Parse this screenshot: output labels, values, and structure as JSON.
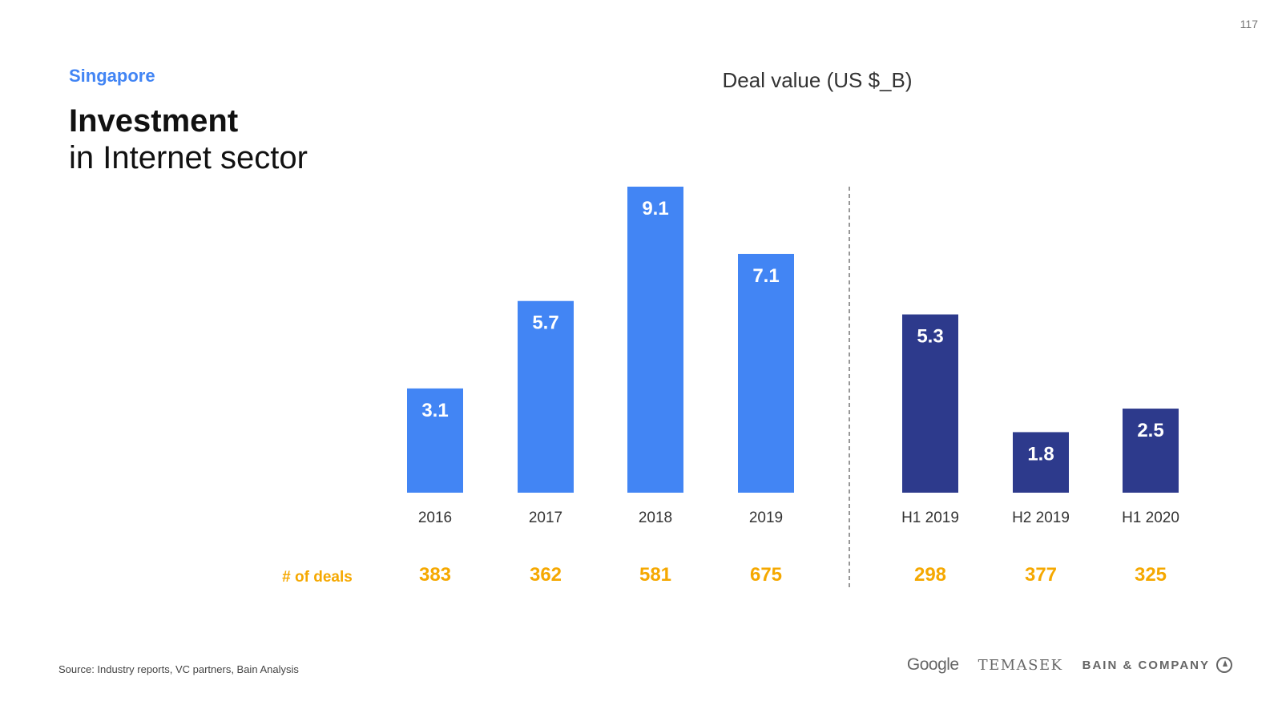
{
  "page_number": "117",
  "header": {
    "kicker": "Singapore",
    "title_bold": "Investment",
    "title_light": "in Internet sector"
  },
  "chart_data": {
    "type": "bar",
    "title": "Deal value (US $_B)",
    "categories": [
      "2016",
      "2017",
      "2018",
      "2019",
      "H1 2019",
      "H2 2019",
      "H1 2020"
    ],
    "values": [
      3.1,
      5.7,
      9.1,
      7.1,
      5.3,
      1.8,
      2.5
    ],
    "value_labels": [
      "3.1",
      "5.7",
      "9.1",
      "7.1",
      "5.3",
      "1.8",
      "2.5"
    ],
    "groups": [
      {
        "name": "annual",
        "indices": [
          0,
          1,
          2,
          3
        ],
        "color": "#4285f4"
      },
      {
        "name": "half-year",
        "indices": [
          4,
          5,
          6
        ],
        "color": "#2d3a8c"
      }
    ],
    "deals_label": "# of deals",
    "deals": [
      "383",
      "362",
      "581",
      "675",
      "298",
      "377",
      "325"
    ],
    "ylim": [
      0,
      9.1
    ],
    "grid": false,
    "xlabel": "",
    "ylabel": ""
  },
  "colors": {
    "annual_bar": "#4285f4",
    "half_year_bar": "#2d3a8c",
    "deals": "#f5a800",
    "kicker": "#4285f4"
  },
  "footer": {
    "source": "Source: Industry reports, VC partners, Bain Analysis",
    "logos": {
      "google": "Google",
      "temasek": "TEMASEK",
      "bain": "BAIN & COMPANY"
    }
  }
}
